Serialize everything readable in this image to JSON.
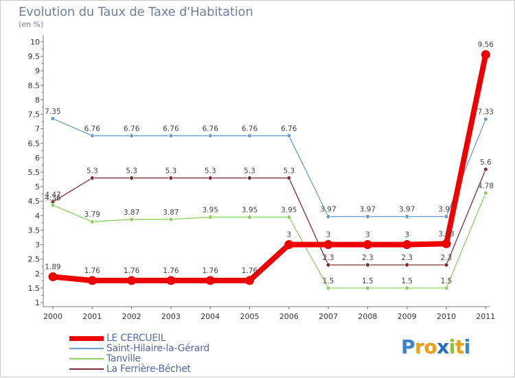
{
  "header": {
    "title": "Evolution du Taux de Taxe d'Habitation",
    "unit": "(en %)"
  },
  "chart_data": {
    "type": "line",
    "title": "Evolution du Taux de Taxe d'Habitation",
    "ylabel": "(en %)",
    "xlabel": "",
    "ylim": [
      1,
      10
    ],
    "yticks": [
      "1",
      "1.5",
      "2",
      "2.5",
      "3",
      "3.5",
      "4",
      "4.5",
      "5",
      "5.5",
      "6",
      "6.5",
      "7",
      "7.5",
      "8",
      "8.5",
      "9",
      "9.5",
      "10"
    ],
    "categories": [
      "2000",
      "2001",
      "2002",
      "2003",
      "2004",
      "2005",
      "2006",
      "2007",
      "2008",
      "2009",
      "2010",
      "2011"
    ],
    "series": [
      {
        "name": "Saint-Hilaire-la-Gérard",
        "color": "#6b9ccf",
        "values": [
          7.35,
          6.76,
          6.76,
          6.76,
          6.76,
          6.76,
          6.76,
          3.97,
          3.97,
          3.97,
          3.97,
          7.33
        ],
        "labels": [
          "7.35",
          "6.76",
          "6.76",
          "6.76",
          "6.76",
          "6.76",
          "6.76",
          "3.97",
          "3.97",
          "3.97",
          "3.97",
          "7.33"
        ]
      },
      {
        "name": "La Ferrière-Béchet",
        "color": "#7a2f35",
        "values": [
          4.47,
          5.3,
          5.3,
          5.3,
          5.3,
          5.3,
          5.3,
          2.3,
          2.3,
          2.3,
          2.3,
          5.6
        ],
        "labels": [
          "4.47",
          "5.3",
          "5.3",
          "5.3",
          "5.3",
          "5.3",
          "5.3",
          "2.3",
          "2.3",
          "2.3",
          "2.3",
          "5.6"
        ]
      },
      {
        "name": "Tanville",
        "color": "#8ed062",
        "values": [
          4.36,
          3.79,
          3.87,
          3.87,
          3.95,
          3.95,
          3.95,
          1.5,
          1.5,
          1.5,
          1.5,
          4.78
        ],
        "labels": [
          "4.36",
          "3.79",
          "3.87",
          "3.87",
          "3.95",
          "3.95",
          "3.95",
          "1.5",
          "1.5",
          "1.5",
          "1.5",
          "4.78"
        ]
      },
      {
        "name": "LE CERCUEIL",
        "color": "#ee0000",
        "values": [
          1.89,
          1.76,
          1.76,
          1.76,
          1.76,
          1.76,
          3,
          3,
          3,
          3,
          3.03,
          9.56
        ],
        "labels": [
          "1.89",
          "1.76",
          "1.76",
          "1.76",
          "1.76",
          "1.76",
          "3",
          "3",
          "3",
          "3",
          "3.03",
          "9.56"
        ]
      }
    ]
  },
  "legend": [
    {
      "label": "LE CERCUEIL",
      "color": "#ee0000",
      "label_color": "#5566aa"
    },
    {
      "label": "Saint-Hilaire-la-Gérard",
      "color": "#6b9ccf",
      "label_color": "#5566aa"
    },
    {
      "label": "Tanville",
      "color": "#8ed062",
      "label_color": "#5566aa"
    },
    {
      "label": "La Ferrière-Béchet",
      "color": "#7a2f35",
      "label_color": "#5566aa"
    }
  ],
  "branding": {
    "logo_letters": [
      "P",
      "r",
      "o",
      "x",
      "i",
      "t",
      "i"
    ],
    "logo_colors": [
      "#3b86c8",
      "#e8a21a",
      "#e8a21a",
      "#2a6fb5",
      "#8fc13e",
      "#e8a21a",
      "#3b86c8"
    ]
  }
}
